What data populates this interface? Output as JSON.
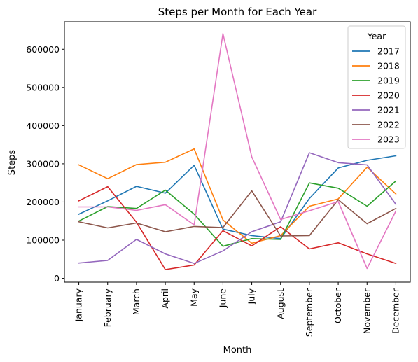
{
  "chart_data": {
    "type": "line",
    "title": "Steps per Month for Each Year",
    "xlabel": "Month",
    "ylabel": "Steps",
    "categories": [
      "January",
      "February",
      "March",
      "April",
      "May",
      "June",
      "July",
      "August",
      "September",
      "October",
      "November",
      "December"
    ],
    "y_ticks": [
      "0",
      "100000",
      "200000",
      "300000",
      "400000",
      "500000",
      "600000"
    ],
    "ylim": [
      -10000,
      672000
    ],
    "grid": false,
    "legend": {
      "title": "Year",
      "placement": "upper-right"
    },
    "series": [
      {
        "name": "2017",
        "color": "#1f77b4",
        "values": [
          168000,
          203000,
          241000,
          223000,
          296000,
          129000,
          112000,
          104000,
          209000,
          289000,
          309000,
          321000
        ]
      },
      {
        "name": "2018",
        "color": "#ff7f0e",
        "values": [
          297000,
          261000,
          298000,
          304000,
          339000,
          153000,
          92000,
          112000,
          189000,
          208000,
          291000,
          221000
        ]
      },
      {
        "name": "2019",
        "color": "#2ca02c",
        "values": [
          150000,
          188000,
          183000,
          231000,
          168000,
          84000,
          104000,
          102000,
          250000,
          236000,
          189000,
          255000
        ]
      },
      {
        "name": "2020",
        "color": "#d62728",
        "values": [
          203000,
          240000,
          147000,
          23000,
          35000,
          125000,
          85000,
          135000,
          77000,
          93000,
          64000,
          39000
        ]
      },
      {
        "name": "2021",
        "color": "#9467bd",
        "values": [
          40000,
          47000,
          102000,
          64000,
          39000,
          72000,
          122000,
          148000,
          329000,
          303000,
          297000,
          194000
        ]
      },
      {
        "name": "2022",
        "color": "#8c564b",
        "values": [
          148000,
          132000,
          145000,
          122000,
          136000,
          133000,
          229000,
          111000,
          112000,
          206000,
          143000,
          183000
        ]
      },
      {
        "name": "2023",
        "color": "#e377c2",
        "values": [
          187000,
          187000,
          178000,
          193000,
          140000,
          641000,
          318000,
          154000,
          177000,
          201000,
          26000,
          176000
        ]
      }
    ]
  }
}
